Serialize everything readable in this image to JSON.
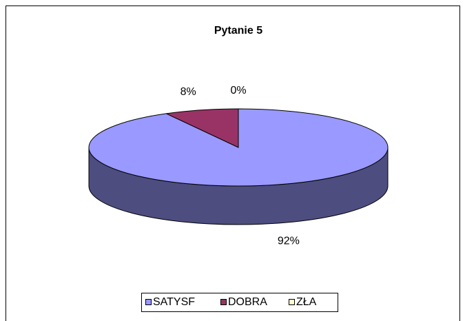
{
  "chart_data": {
    "type": "pie3d",
    "title": "Pytanie 5",
    "categories": [
      "SATYSF",
      "DOBRA",
      "ZŁA"
    ],
    "values": [
      92,
      8,
      0
    ],
    "value_labels": [
      "92%",
      "8%",
      "0%"
    ],
    "colors": [
      "#9999ff",
      "#993366",
      "#ffffcc"
    ],
    "legend": "bottom"
  }
}
